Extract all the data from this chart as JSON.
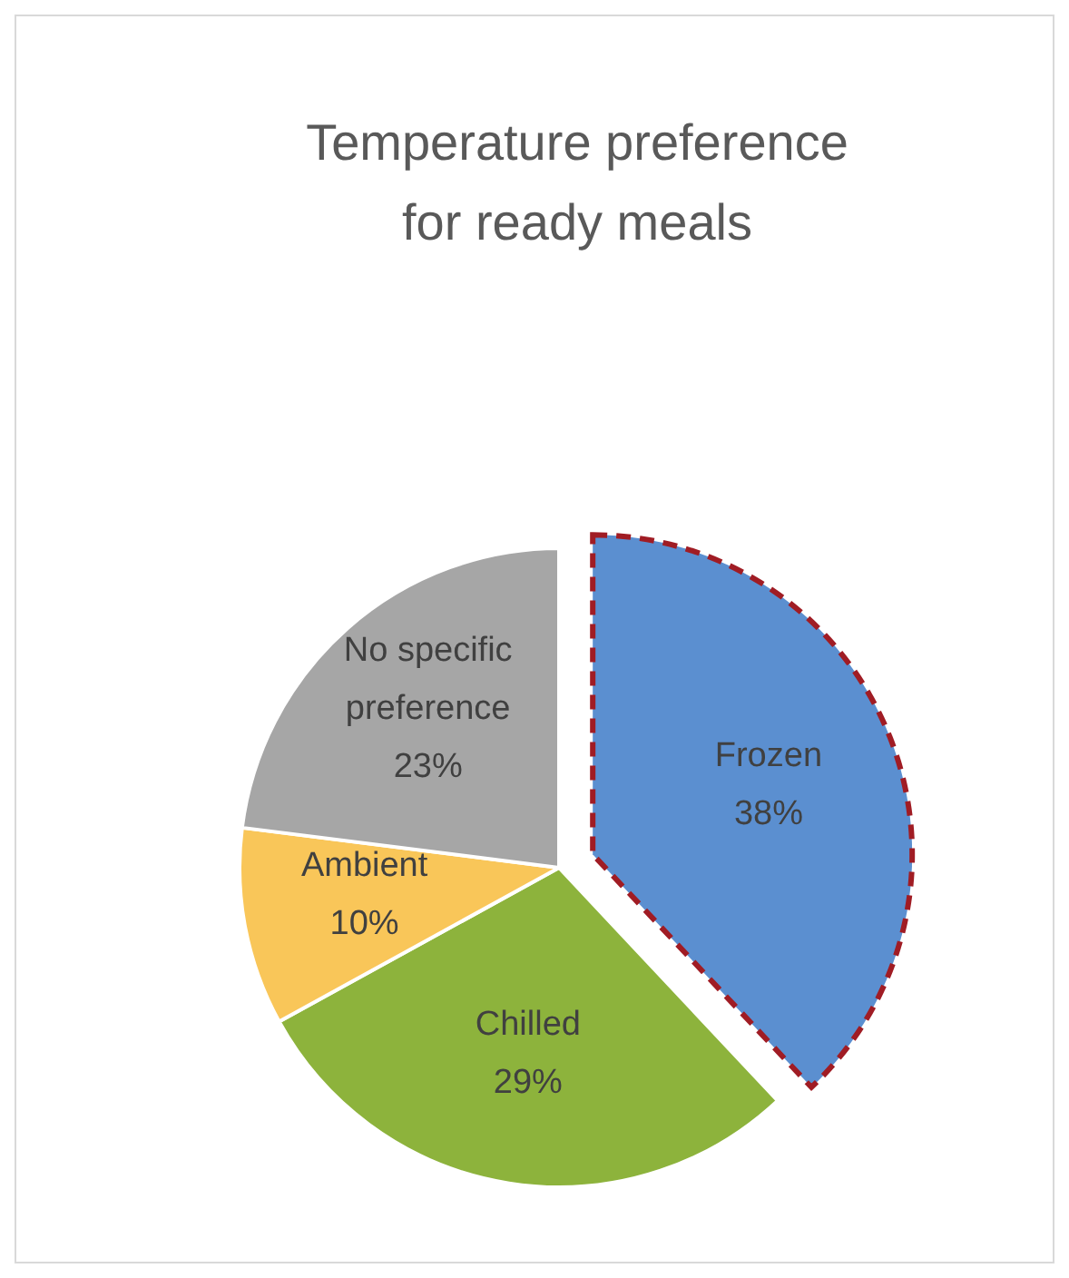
{
  "chart_data": {
    "type": "pie",
    "title": "Temperature preference for ready meals",
    "categories": [
      "Frozen",
      "Chilled",
      "Ambient",
      "No specific preference"
    ],
    "values": [
      38,
      29,
      10,
      23
    ],
    "colors": [
      "#5b8fd0",
      "#8db33c",
      "#f9c659",
      "#a6a6a6"
    ],
    "value_labels": [
      "38%",
      "29%",
      "10%",
      "23%"
    ]
  }
}
